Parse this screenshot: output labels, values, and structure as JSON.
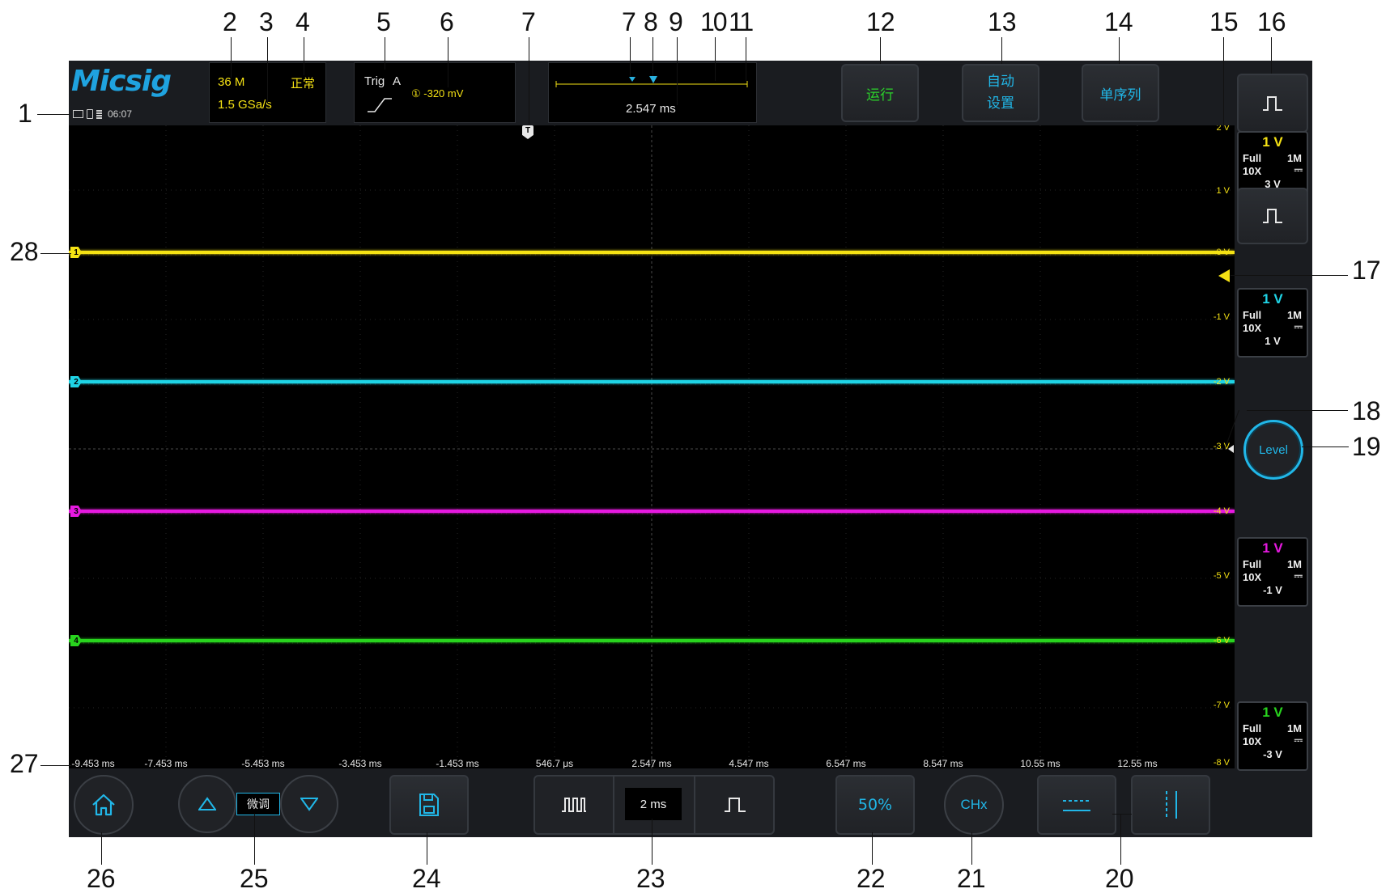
{
  "header": {
    "logo": "Micsig",
    "time": "06:07",
    "memory_depth": "36 M",
    "sample_rate": "1.5 GSa/s",
    "acq_mode": "正常",
    "trigger_label": "Trig",
    "trigger_type": "A",
    "trigger_level": "① -320 mV",
    "delay": "2.547 ms"
  },
  "buttons": {
    "run": "运行",
    "auto_line1": "自动",
    "auto_line2": "设置",
    "single": "单序列",
    "level": "Level",
    "fine": "微调",
    "time_base": "2 ms",
    "fifty": "50%",
    "chx": "CHx"
  },
  "channels": [
    {
      "id": "1",
      "volts_div": "1 V",
      "bw": "Full",
      "impedance": "1M",
      "probe": "10X",
      "offset": "3 V",
      "color": "#f5e214"
    },
    {
      "id": "2",
      "volts_div": "1 V",
      "bw": "Full",
      "impedance": "1M",
      "probe": "10X",
      "offset": "1 V",
      "color": "#1fd4e6"
    },
    {
      "id": "3",
      "volts_div": "1 V",
      "bw": "Full",
      "impedance": "1M",
      "probe": "10X",
      "offset": "-1 V",
      "color": "#e619e0"
    },
    {
      "id": "4",
      "volts_div": "1 V",
      "bw": "Full",
      "impedance": "1M",
      "probe": "10X",
      "offset": "-3 V",
      "color": "#28d41e"
    }
  ],
  "vertical_scale": [
    "2 V",
    "1 V",
    "0 V",
    "-1 V",
    "-2 V",
    "-3 V",
    "-4 V",
    "-5 V",
    "-6 V",
    "-7 V",
    "-8 V"
  ],
  "time_scale": [
    "-9.453 ms",
    "-7.453 ms",
    "-5.453 ms",
    "-3.453 ms",
    "-1.453 ms",
    "546.7 μs",
    "2.547 ms",
    "4.547 ms",
    "6.547 ms",
    "8.547 ms",
    "10.55 ms",
    "12.55 ms"
  ],
  "callouts": [
    "1",
    "2",
    "3",
    "4",
    "5",
    "6",
    "7",
    "7",
    "8",
    "9",
    "10",
    "11",
    "12",
    "13",
    "14",
    "15",
    "16",
    "17",
    "18",
    "19",
    "20",
    "21",
    "22",
    "23",
    "24",
    "25",
    "26",
    "27",
    "28"
  ]
}
